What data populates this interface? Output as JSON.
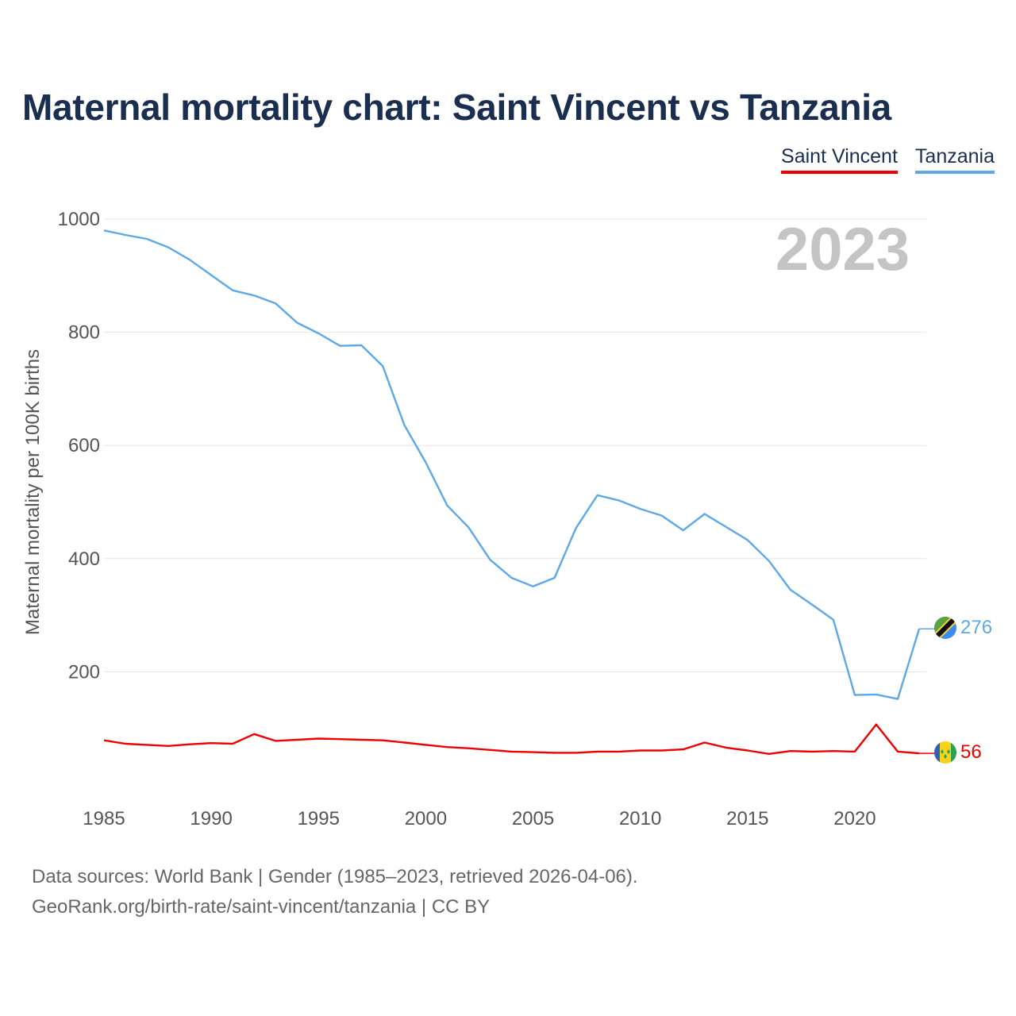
{
  "title": "Maternal mortality chart: Saint Vincent vs Tanzania",
  "legend": [
    {
      "label": "Saint Vincent",
      "color": "#ee0000"
    },
    {
      "label": "Tanzania",
      "color": "#5ea8e6"
    }
  ],
  "footer": {
    "source": "Data sources: World Bank | Gender (1985–2023, retrieved 2026-04-06).",
    "link": "GeoRank.org/birth-rate/saint-vincent/tanzania | CC BY"
  },
  "chart_data": {
    "type": "line",
    "title": "Maternal mortality chart: Saint Vincent vs Tanzania",
    "xlabel": "",
    "ylabel": "Maternal mortality per 100K births",
    "year_label": "2023",
    "xlim": [
      1985,
      2023
    ],
    "ylim": [
      0,
      1000
    ],
    "yticks": [
      200,
      400,
      600,
      800,
      1000
    ],
    "xticks": [
      1985,
      1990,
      1995,
      2000,
      2005,
      2010,
      2015,
      2020
    ],
    "grid": true,
    "legend_position": "top-right",
    "x": [
      1985,
      1986,
      1987,
      1988,
      1989,
      1990,
      1991,
      1992,
      1993,
      1994,
      1995,
      1996,
      1997,
      1998,
      1999,
      2000,
      2001,
      2002,
      2003,
      2004,
      2005,
      2006,
      2007,
      2008,
      2009,
      2010,
      2011,
      2012,
      2013,
      2014,
      2015,
      2016,
      2017,
      2018,
      2019,
      2020,
      2021,
      2022,
      2023
    ],
    "series": [
      {
        "name": "Saint Vincent",
        "color": "#ee0000",
        "end_label": "56",
        "values": [
          79,
          73,
          71,
          69,
          72,
          74,
          73,
          90,
          78,
          80,
          82,
          81,
          80,
          79,
          75,
          71,
          67,
          65,
          62,
          59,
          58,
          57,
          57,
          59,
          59,
          61,
          61,
          63,
          75,
          66,
          61,
          55,
          60,
          59,
          60,
          59,
          107,
          59,
          56
        ]
      },
      {
        "name": "Tanzania",
        "color": "#5ea8e6",
        "end_label": "276",
        "values": [
          980,
          972,
          965,
          950,
          928,
          901,
          874,
          865,
          851,
          817,
          798,
          776,
          777,
          740,
          636,
          570,
          494,
          455,
          398,
          366,
          351,
          366,
          454,
          512,
          503,
          488,
          476,
          450,
          479,
          456,
          433,
          396,
          345,
          319,
          292,
          159,
          160,
          152,
          276
        ]
      }
    ]
  }
}
